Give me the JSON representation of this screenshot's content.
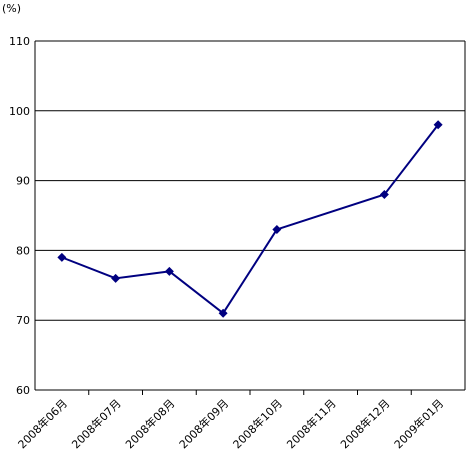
{
  "chart_data": {
    "type": "line",
    "y_label": "(%)",
    "categories": [
      "2008年06月",
      "2008年07月",
      "2008年08月",
      "2008年09月",
      "2008年10月",
      "2008年11月",
      "2008年12月",
      "2009年01月"
    ],
    "series": [
      {
        "color": "#000080",
        "values": [
          79,
          76,
          77,
          71,
          83,
          null,
          88,
          98
        ]
      }
    ],
    "ylim": [
      60,
      110
    ],
    "yticks": [
      60,
      70,
      80,
      90,
      100,
      110
    ],
    "grid": true
  }
}
